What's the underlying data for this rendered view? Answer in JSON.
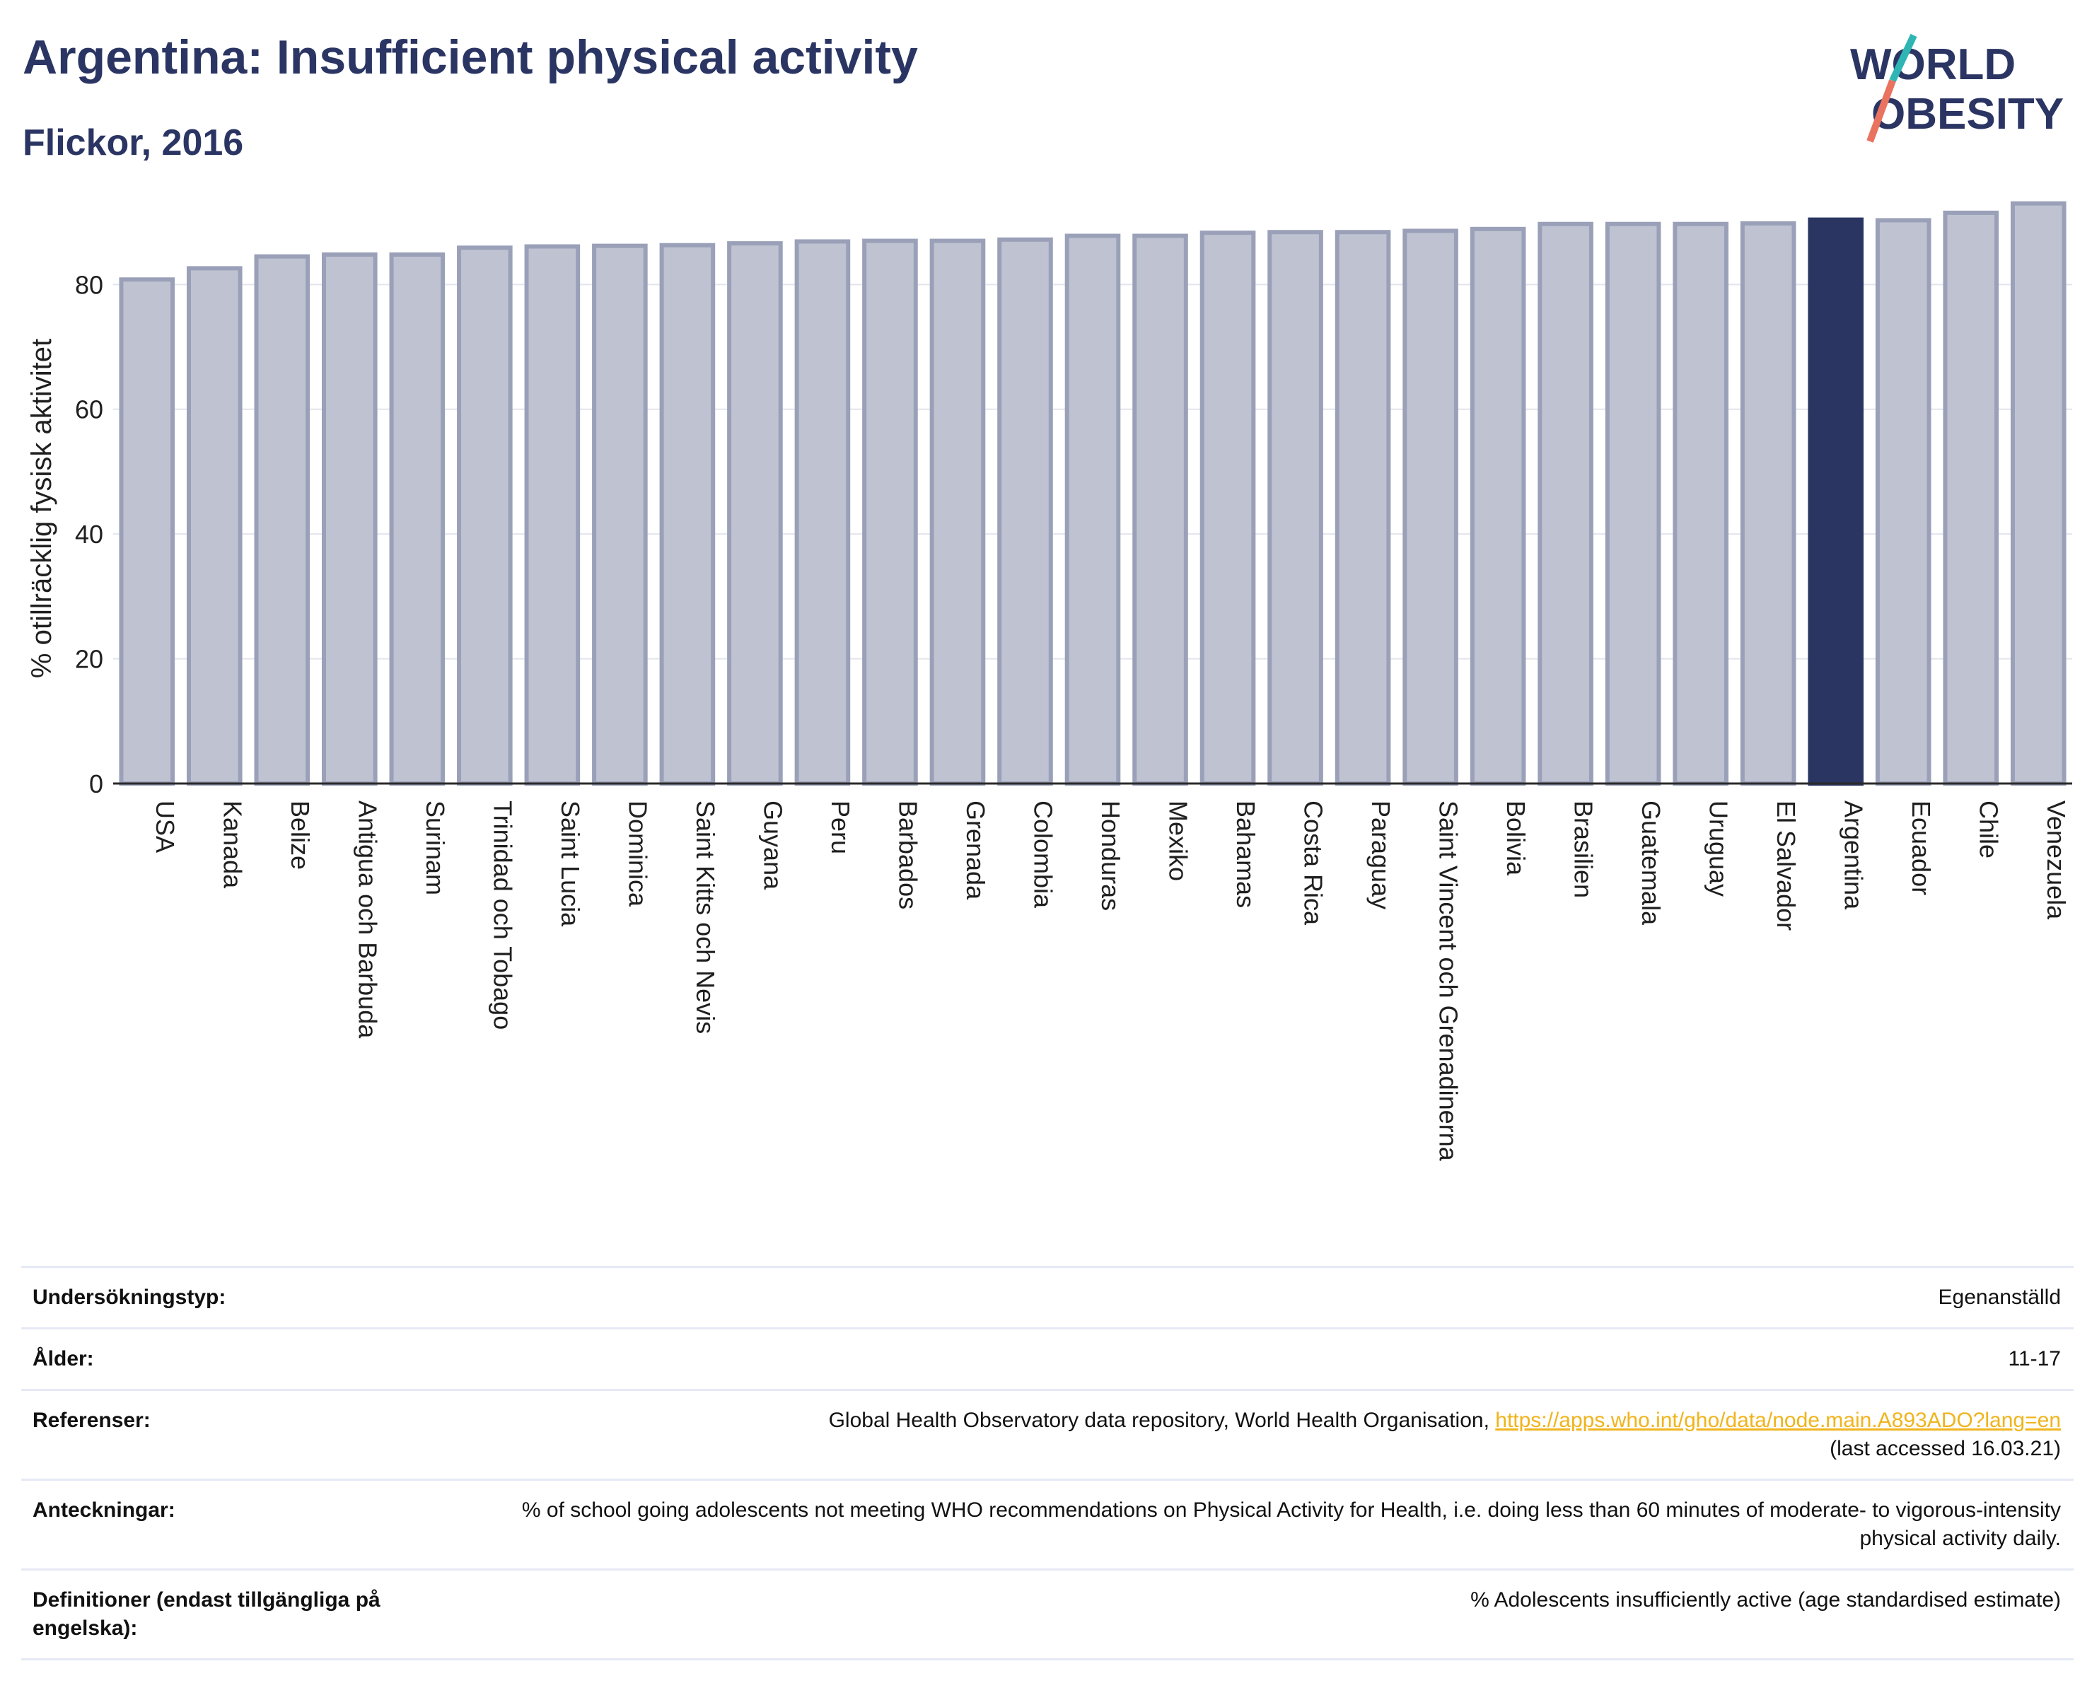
{
  "header": {
    "title": "Argentina: Insufficient physical activity",
    "subtitle": "Flickor, 2016"
  },
  "logo": {
    "line1": "WORLD",
    "line2": "OBESITY"
  },
  "colors": {
    "bar": "#bfc3d1",
    "bar_edge": "#9aa0b8",
    "highlight": "#2b3561",
    "title": "#2b3563",
    "link": "#f0b41c",
    "grid": "#e3e5ee"
  },
  "chart_data": {
    "type": "bar",
    "ylabel": "% otillräcklig fysisk aktivitet",
    "ylim": [
      0,
      95
    ],
    "yticks": [
      0,
      20,
      40,
      60,
      80
    ],
    "highlight": "Argentina",
    "grid": true,
    "categories": [
      "USA",
      "Kanada",
      "Belize",
      "Antigua och Barbuda",
      "Surinam",
      "Trinidad och Tobago",
      "Saint Lucia",
      "Dominica",
      "Saint Kitts och Nevis",
      "Guyana",
      "Peru",
      "Barbados",
      "Grenada",
      "Colombia",
      "Honduras",
      "Mexiko",
      "Bahamas",
      "Costa Rica",
      "Paraguay",
      "Saint Vincent och Grenadinerna",
      "Bolivia",
      "Brasilien",
      "Guatemala",
      "Uruguay",
      "El Salvador",
      "Argentina",
      "Ecuador",
      "Chile",
      "Venezuela"
    ],
    "values": [
      80.8,
      82.6,
      84.5,
      84.8,
      84.8,
      85.9,
      86.1,
      86.2,
      86.3,
      86.6,
      86.9,
      87.0,
      87.0,
      87.2,
      87.8,
      87.8,
      88.3,
      88.4,
      88.4,
      88.6,
      88.9,
      89.7,
      89.7,
      89.7,
      89.8,
      90.4,
      90.3,
      91.5,
      93.0
    ]
  },
  "info": {
    "rows": [
      {
        "label": "Undersökningstyp:",
        "value": "Egenanställd"
      },
      {
        "label": "Ålder:",
        "value": "11-17"
      },
      {
        "label": "Referenser:",
        "value": "Global Health Observatory data repository, World Health Organisation,",
        "link": "https://apps.who.int/gho/data/node.main.A893ADO?lang=en",
        "value2": "(last accessed 16.03.21)"
      },
      {
        "label": "Anteckningar:",
        "value": "% of school going adolescents not meeting WHO recommendations on Physical Activity for Health, i.e. doing less than 60 minutes of moderate- to vigorous-intensity physical activity daily."
      },
      {
        "label": "Definitioner (endast tillgängliga på engelska):",
        "value": "% Adolescents insufficiently active (age standardised estimate)"
      }
    ]
  }
}
